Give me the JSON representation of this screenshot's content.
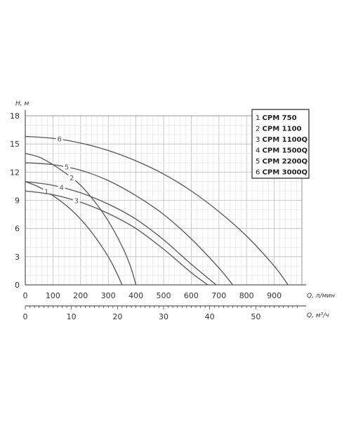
{
  "chart_data": {
    "type": "line",
    "ylabel": "H, м",
    "xlabel": "Q, л/мин",
    "x2label": "Q, м³/ч",
    "xlim": [
      0,
      1000
    ],
    "ylim": [
      0,
      18
    ],
    "x_ticks": [
      "0",
      "100",
      "200",
      "300",
      "400",
      "500",
      "600",
      "700",
      "800",
      "900"
    ],
    "x2_ticks": [
      "0",
      "10",
      "20",
      "30",
      "40",
      "50"
    ],
    "y_ticks": [
      "0",
      "3",
      "6",
      "9",
      "12",
      "15",
      "18"
    ],
    "grid": true,
    "legend_position": "top-right",
    "series": [
      {
        "id": "1",
        "name": "CPM 750",
        "label": "1",
        "points": [
          [
            0,
            11.0
          ],
          [
            50,
            10.4
          ],
          [
            100,
            9.5
          ],
          [
            150,
            8.4
          ],
          [
            200,
            7.0
          ],
          [
            250,
            5.2
          ],
          [
            300,
            3.0
          ],
          [
            330,
            1.3
          ],
          [
            350,
            0
          ]
        ]
      },
      {
        "id": "2",
        "name": "CPM 1100",
        "label": "2",
        "points": [
          [
            0,
            14.0
          ],
          [
            50,
            13.6
          ],
          [
            100,
            12.8
          ],
          [
            150,
            11.8
          ],
          [
            200,
            10.6
          ],
          [
            250,
            8.9
          ],
          [
            300,
            6.8
          ],
          [
            350,
            4.1
          ],
          [
            380,
            2.0
          ],
          [
            400,
            0
          ]
        ]
      },
      {
        "id": "3",
        "name": "CPM 1100Q",
        "label": "3",
        "points": [
          [
            0,
            10.0
          ],
          [
            100,
            9.6
          ],
          [
            200,
            8.8
          ],
          [
            300,
            7.6
          ],
          [
            400,
            6.0
          ],
          [
            500,
            3.8
          ],
          [
            600,
            1.3
          ],
          [
            660,
            0
          ]
        ]
      },
      {
        "id": "4",
        "name": "CPM 1500Q",
        "label": "4",
        "points": [
          [
            0,
            11.0
          ],
          [
            100,
            10.6
          ],
          [
            200,
            9.8
          ],
          [
            300,
            8.6
          ],
          [
            400,
            7.0
          ],
          [
            500,
            4.8
          ],
          [
            600,
            2.2
          ],
          [
            690,
            0
          ]
        ]
      },
      {
        "id": "5",
        "name": "CPM 2200Q",
        "label": "5",
        "points": [
          [
            0,
            13.0
          ],
          [
            100,
            12.8
          ],
          [
            200,
            12.2
          ],
          [
            300,
            11.1
          ],
          [
            400,
            9.5
          ],
          [
            500,
            7.5
          ],
          [
            600,
            4.9
          ],
          [
            700,
            1.8
          ],
          [
            750,
            0
          ]
        ]
      },
      {
        "id": "6",
        "name": "CPM 3000Q",
        "label": "6",
        "points": [
          [
            0,
            15.8
          ],
          [
            100,
            15.6
          ],
          [
            200,
            15.1
          ],
          [
            300,
            14.3
          ],
          [
            400,
            13.2
          ],
          [
            500,
            11.8
          ],
          [
            600,
            10.0
          ],
          [
            700,
            7.8
          ],
          [
            800,
            5.2
          ],
          [
            900,
            2.0
          ],
          [
            950,
            0
          ]
        ]
      }
    ]
  }
}
